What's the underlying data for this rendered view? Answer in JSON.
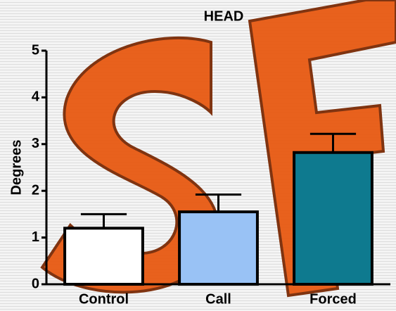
{
  "chart_data": {
    "type": "bar",
    "title": "HEAD",
    "y_label": "Degrees",
    "categories": [
      "Control",
      "Call",
      "Forced"
    ],
    "values": [
      1.2,
      1.55,
      2.82
    ],
    "errors": [
      0.3,
      0.37,
      0.4
    ],
    "colors": [
      "#ffffff",
      "#99c2f5",
      "#0e7a8f"
    ],
    "ylim": [
      0,
      5
    ],
    "yticks": [
      0,
      1,
      2,
      3,
      4,
      5
    ],
    "grid": false
  }
}
